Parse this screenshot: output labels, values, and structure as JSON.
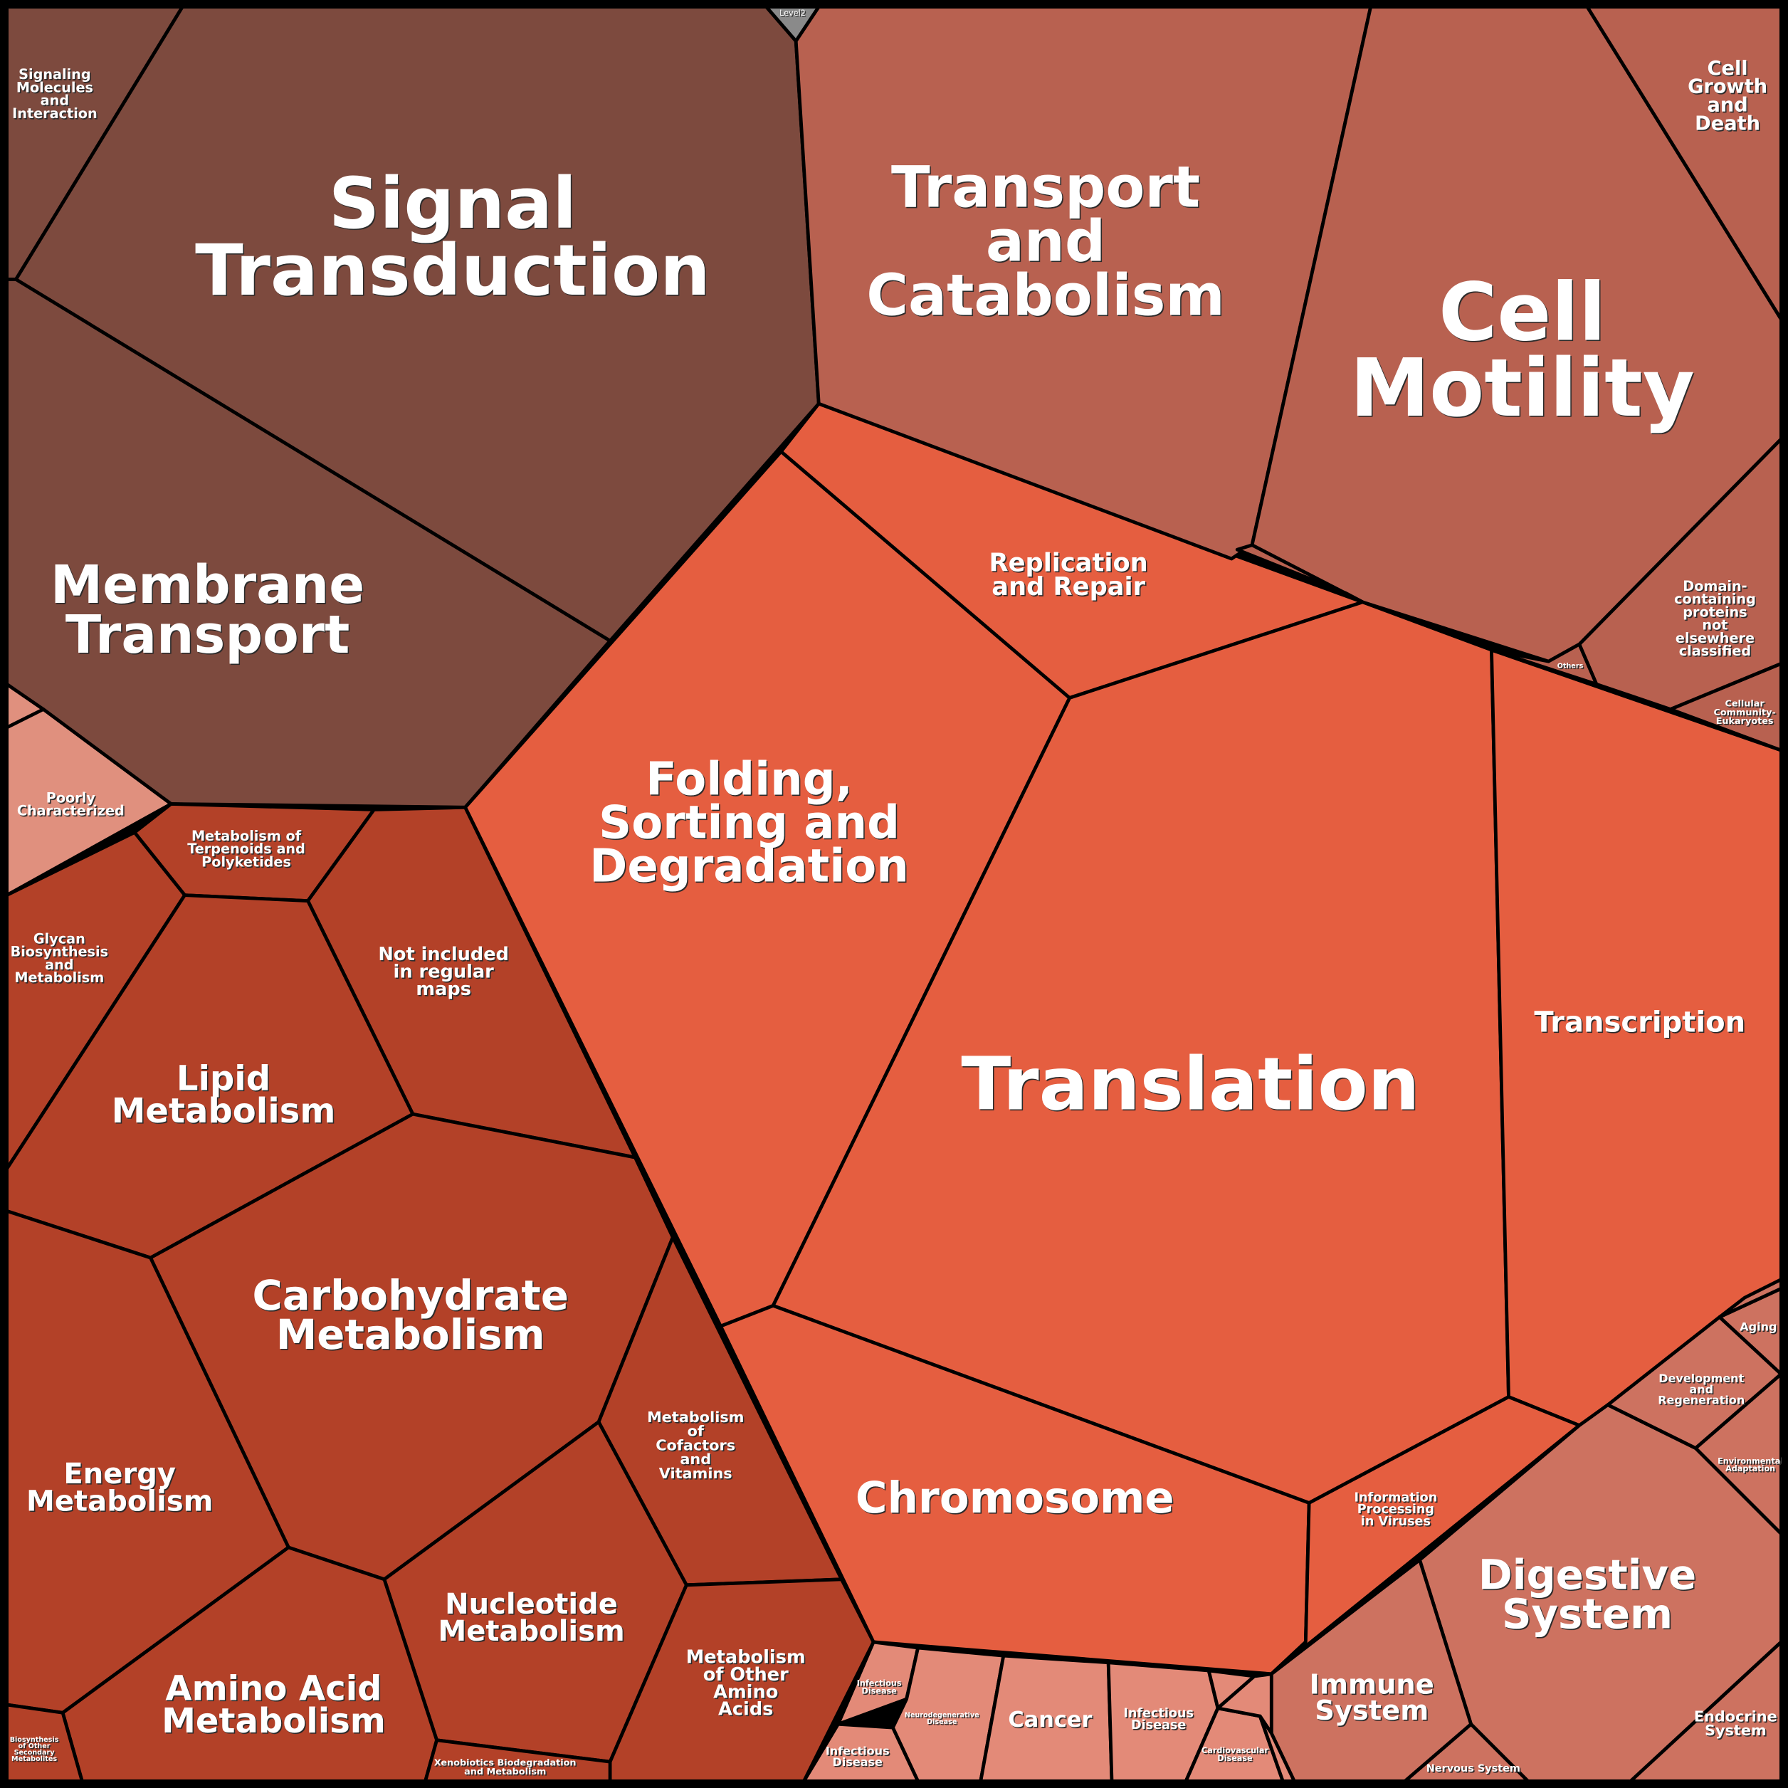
{
  "level_label": "Level2",
  "cells": [
    {
      "label": [
        "Signaling",
        "Molecules",
        "and",
        "Interaction"
      ]
    },
    {
      "label": [
        "Signal",
        "Transduction"
      ]
    },
    {
      "label": [
        "Membrane",
        "Transport"
      ]
    },
    {
      "label": [
        "Poorly",
        "Characterized"
      ]
    },
    {
      "label": [
        "Metabolism of",
        "Terpenoids and",
        "Polyketides"
      ]
    },
    {
      "label": [
        "Glycan",
        "Biosynthesis",
        "and",
        "Metabolism"
      ]
    },
    {
      "label": [
        "Not included",
        "in regular",
        "maps"
      ]
    },
    {
      "label": [
        "Lipid",
        "Metabolism"
      ]
    },
    {
      "label": [
        "Carbohydrate",
        "Metabolism"
      ]
    },
    {
      "label": [
        "Energy",
        "Metabolism"
      ]
    },
    {
      "label": [
        "Metabolism",
        "of",
        "Cofactors",
        "and",
        "Vitamins"
      ]
    },
    {
      "label": [
        "Nucleotide",
        "Metabolism"
      ]
    },
    {
      "label": [
        "Amino Acid",
        "Metabolism"
      ]
    },
    {
      "label": [
        "Metabolism",
        "of Other",
        "Amino",
        "Acids"
      ]
    },
    {
      "label": [
        "Xenobiotics Biodegradation",
        "and Metabolism"
      ]
    },
    {
      "label": [
        "Biosynthesis",
        "of Other",
        "Secondary",
        "Metabolites"
      ]
    },
    {
      "label": [
        "Folding,",
        "Sorting and",
        "Degradation"
      ]
    },
    {
      "label": [
        "Replication",
        "and Repair"
      ]
    },
    {
      "label": [
        "Translation"
      ]
    },
    {
      "label": [
        "Transcription"
      ]
    },
    {
      "label": [
        "Chromosome"
      ]
    },
    {
      "label": [
        "Information",
        "Processing",
        "in Viruses"
      ]
    },
    {
      "label": [
        "Transport",
        "and",
        "Catabolism"
      ]
    },
    {
      "label": [
        "Cell",
        "Motility"
      ]
    },
    {
      "label": [
        "Cell",
        "Growth",
        "and",
        "Death"
      ]
    },
    {
      "label": [
        "Domain-",
        "containing",
        "proteins",
        "not",
        "elsewhere",
        "classified"
      ]
    },
    {
      "label": [
        "Cellular",
        "Community-",
        "Eukaryotes"
      ]
    },
    {
      "label": [
        "Others"
      ]
    },
    {
      "label": [
        "Digestive",
        "System"
      ]
    },
    {
      "label": [
        "Endocrine",
        "System"
      ]
    },
    {
      "label": [
        "Nervous System"
      ]
    },
    {
      "label": [
        "Immune",
        "System"
      ]
    },
    {
      "label": [
        "Development",
        "and",
        "Regeneration"
      ]
    },
    {
      "label": [
        "Aging"
      ]
    },
    {
      "label": [
        "Environmental",
        "Adaptation"
      ]
    },
    {
      "label": [
        "Infectious",
        "Disease"
      ]
    },
    {
      "label": [
        "Infectious",
        "Disease"
      ]
    },
    {
      "label": [
        "Neurodegenerative",
        "Disease"
      ]
    },
    {
      "label": [
        "Cancer"
      ]
    },
    {
      "label": [
        "Infectious",
        "Disease"
      ]
    },
    {
      "label": [
        "Cardiovascular",
        "Disease"
      ]
    }
  ]
}
